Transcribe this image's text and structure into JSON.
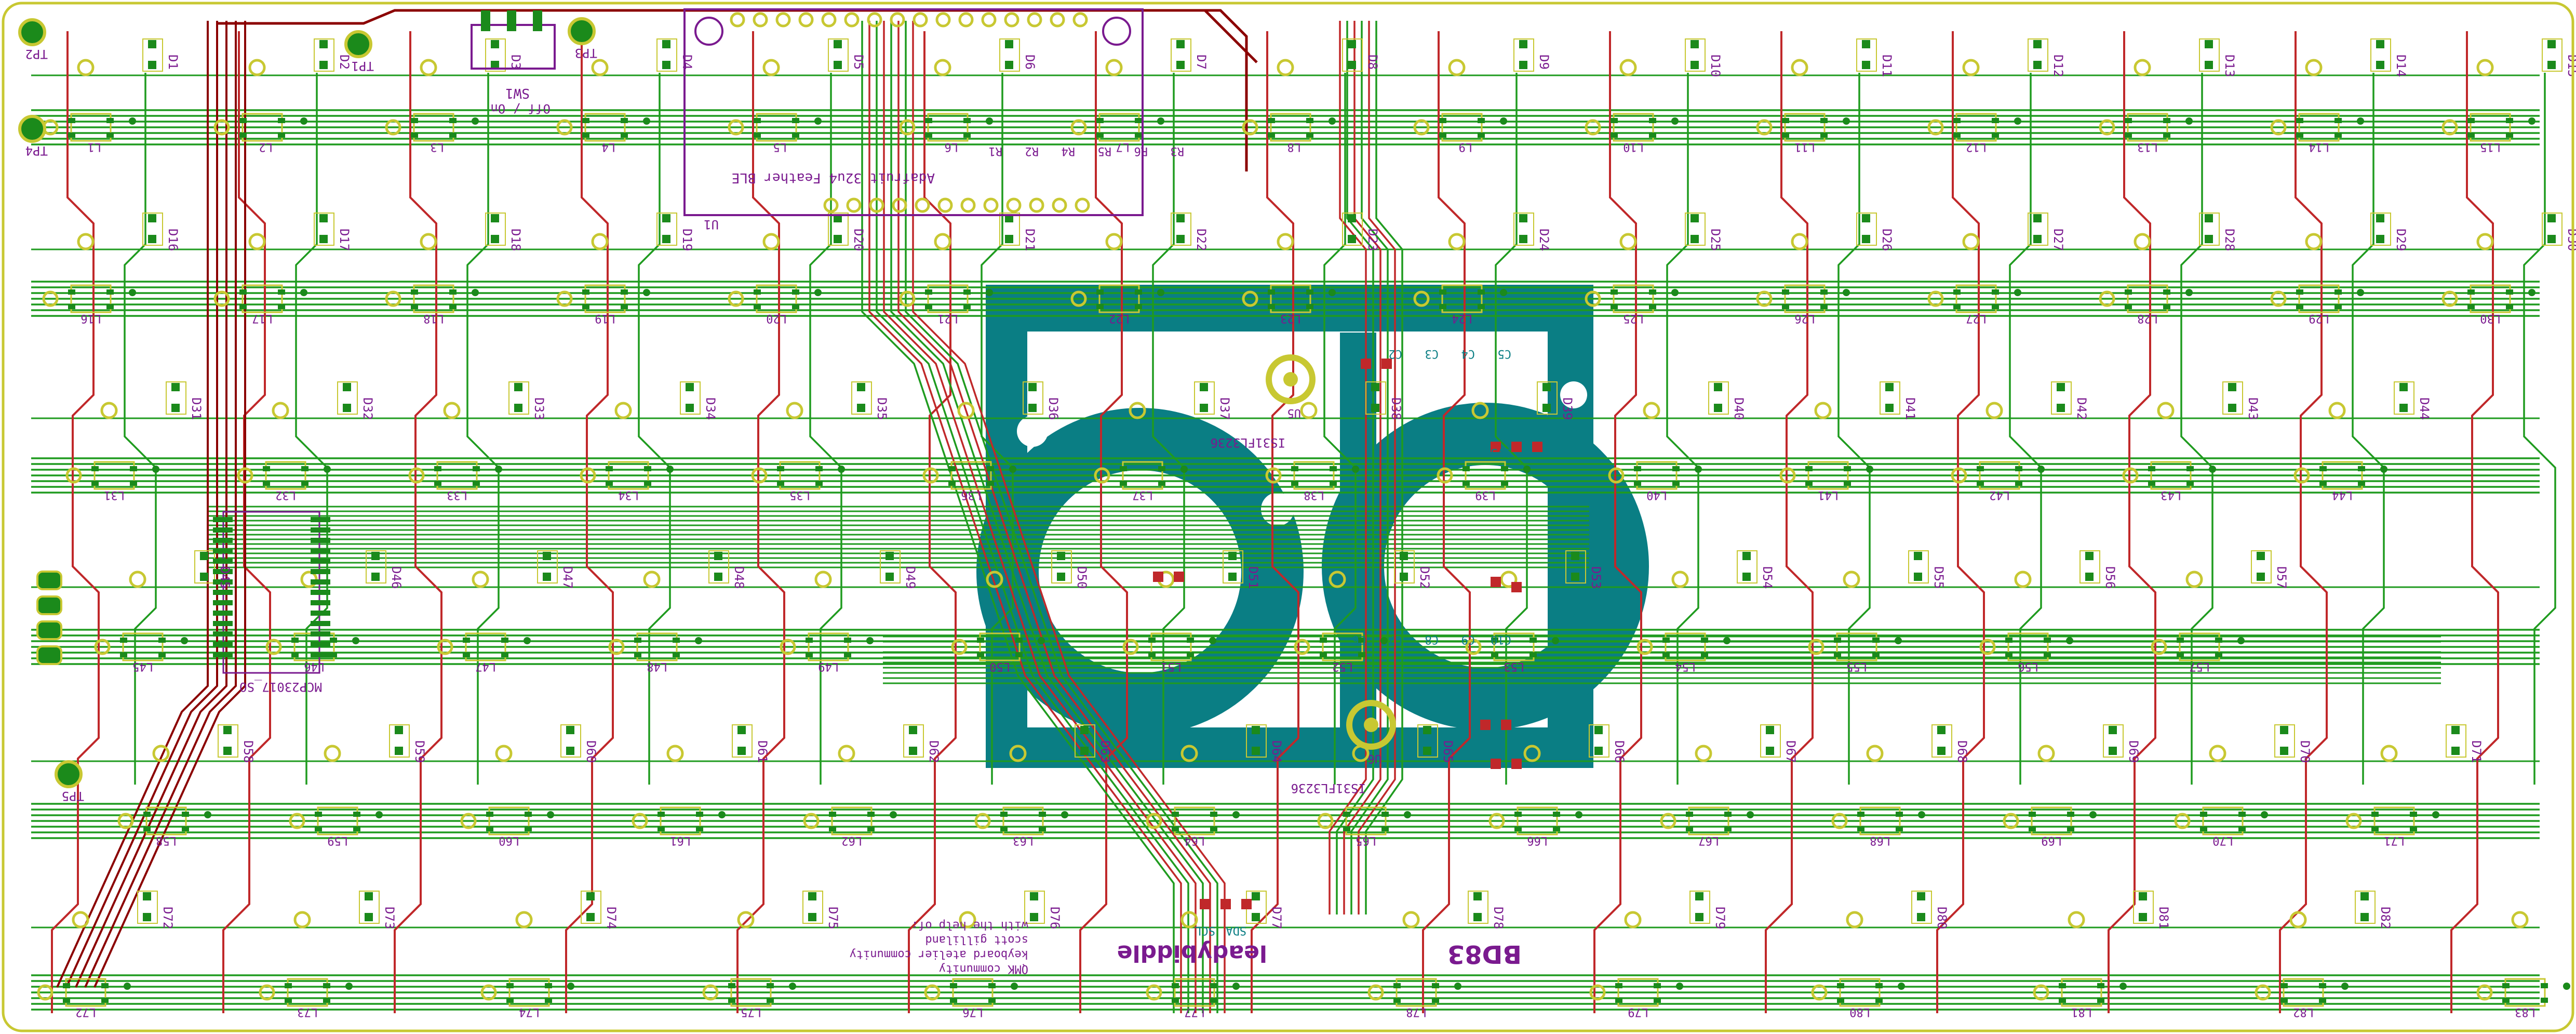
{
  "board": {
    "title": "BD83",
    "brand": "leadybiddle",
    "credits": [
      "with the help of:",
      "scott gilliland",
      "keyboard atelier community",
      "QMK community"
    ],
    "switch_label": "SW1",
    "switch_state": "Off / On",
    "mcu_label": "Adafruit 32u4 Feather BLE",
    "mcu_ref": "U1",
    "expander_label": "MCP23017_SO",
    "bus_labels": [
      "SCL",
      "SDA"
    ],
    "voltage_label": "3V3",
    "logo_text": "bd"
  },
  "test_points": [
    "TP1",
    "TP2",
    "TP3",
    "TP4",
    "TP5"
  ],
  "ics": [
    "IS31FL3236",
    "IS31FL3236"
  ],
  "ic_refs": [
    "U5",
    "U6"
  ],
  "resistor_refs": [
    "R1",
    "R2",
    "R4",
    "R5",
    "R6",
    "R3"
  ],
  "capacitor_refs": [
    "C1",
    "C2",
    "C3",
    "C4",
    "C5",
    "C6",
    "C7",
    "C8",
    "C9",
    "C10"
  ],
  "colors": {
    "background": "#ffffff",
    "edge_cuts": "#c8c832",
    "front_copper": "#c0282a",
    "back_copper": "#1f9b1f",
    "via_ring": "#c8c832",
    "pad_green": "#1b8a1b",
    "label_purple": "#7a1a8f",
    "silkscreen_teal": "#0a7e84",
    "track_dark_red": "#8b0000"
  },
  "matrix": {
    "rows": [
      {
        "leds": [
          "L1",
          "L2",
          "L3",
          "L4",
          "L5",
          "L6",
          "L7",
          "L8",
          "L9",
          "L10",
          "L11",
          "L12",
          "L13",
          "L14",
          "L15"
        ],
        "diodes": [
          "D1",
          "D2",
          "D3",
          "D4",
          "D5",
          "D6",
          "D7",
          "D8",
          "D9",
          "D10",
          "D11",
          "D12",
          "D13",
          "D14",
          "D15"
        ]
      },
      {
        "leds": [
          "L16",
          "L17",
          "L18",
          "L19",
          "L20",
          "L21",
          "L22",
          "L23",
          "L24",
          "L25",
          "L26",
          "L27",
          "L28",
          "L29",
          "L30"
        ],
        "diodes": [
          "D16",
          "D17",
          "D18",
          "D19",
          "D20",
          "D21",
          "D22",
          "D23",
          "D24",
          "D25",
          "D26",
          "D27",
          "D28",
          "D29",
          "D30"
        ]
      },
      {
        "leds": [
          "L31",
          "L32",
          "L33",
          "L34",
          "L35",
          "L36",
          "L37",
          "L38",
          "L39",
          "L40",
          "L41",
          "L42",
          "L43",
          "L44"
        ],
        "diodes": [
          "D31",
          "D32",
          "D33",
          "D34",
          "D35",
          "D36",
          "D37",
          "D38",
          "D39",
          "D40",
          "D41",
          "D42",
          "D43",
          "D44"
        ]
      },
      {
        "leds": [
          "L45",
          "L46",
          "L47",
          "L48",
          "L49",
          "L50",
          "L51",
          "L52",
          "L53",
          "L54",
          "L55",
          "L56",
          "L57"
        ],
        "diodes": [
          "D45",
          "D46",
          "D47",
          "D48",
          "D49",
          "D50",
          "D51",
          "D52",
          "D53",
          "D54",
          "D55",
          "D56",
          "D57"
        ]
      },
      {
        "leds": [
          "L58",
          "L59",
          "L60",
          "L61",
          "L62",
          "L63",
          "L64",
          "L65",
          "L66",
          "L67",
          "L68",
          "L69",
          "L70",
          "L71"
        ],
        "diodes": [
          "D58",
          "D59",
          "D60",
          "D61",
          "D62",
          "D63",
          "D64",
          "D65",
          "D66",
          "D67",
          "D68",
          "D69",
          "D70",
          "D71"
        ]
      },
      {
        "leds": [
          "L72",
          "L73",
          "L74",
          "L75",
          "L76",
          "L77",
          "L78",
          "L79",
          "L80",
          "L81",
          "L82",
          "L83"
        ],
        "diodes": [
          "D72",
          "D73",
          "D74",
          "D75",
          "D76",
          "D77",
          "D78",
          "D79",
          "D80",
          "D81",
          "D82",
          "D83"
        ]
      }
    ]
  }
}
